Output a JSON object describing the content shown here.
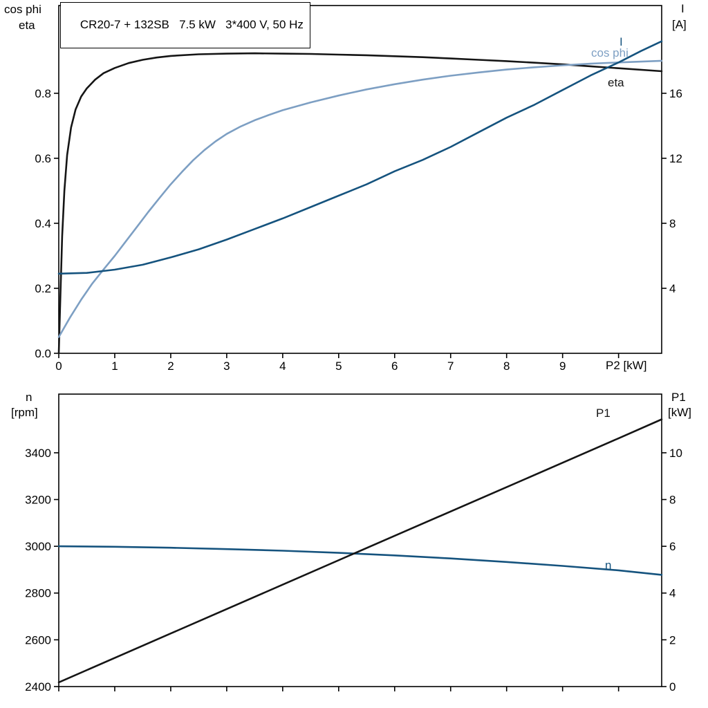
{
  "header": {
    "title": "CR20-7 + 132SB   7.5 kW   3*400 V, 50 Hz"
  },
  "colors": {
    "black_curve": "#151515",
    "dark_blue": "#15537e",
    "light_blue": "#7d9fc3",
    "axis": "#000000",
    "background": "#ffffff"
  },
  "axis_titles": {
    "top_left_line1": "cos phi",
    "top_left_line2": "eta",
    "top_right_line1": "I",
    "top_right_line2": "[A]",
    "x_label": "P2 [kW]",
    "bottom_left_line1": "n",
    "bottom_left_line2": "[rpm]",
    "bottom_right_line1": "P1",
    "bottom_right_line2": "[kW]"
  },
  "curve_labels": {
    "current": "I",
    "cos_phi": "cos phi",
    "eta": "eta",
    "p1": "P1",
    "n": "n"
  },
  "chart_data": [
    {
      "type": "line",
      "title": "CR20-7 + 132SB   7.5 kW   3*400 V, 50 Hz",
      "xlabel": "P2 [kW]",
      "xlim": [
        0,
        10.77
      ],
      "x_ticks": [
        0,
        1,
        2,
        3,
        4,
        5,
        6,
        7,
        8,
        9,
        10
      ],
      "x_tick_labels": [
        "0",
        "1",
        "2",
        "3",
        "4",
        "5",
        "6",
        "7",
        "8",
        "9",
        ""
      ],
      "grid": false,
      "left_axis": {
        "label": "cos phi / eta",
        "lim": [
          0,
          1.07
        ],
        "ticks": [
          0,
          0.2,
          0.4,
          0.6,
          0.8
        ],
        "tick_labels": [
          "0.0",
          "0.2",
          "0.4",
          "0.6",
          "0.8"
        ]
      },
      "right_axis": {
        "label": "I [A]",
        "lim": [
          0,
          21.4
        ],
        "ticks": [
          4,
          8,
          12,
          16
        ],
        "tick_labels": [
          "4",
          "8",
          "12",
          "16"
        ]
      },
      "series": [
        {
          "id": "eta",
          "name": "eta",
          "axis": "left",
          "color_key": "black_curve",
          "points": [
            [
              0,
              0
            ],
            [
              0.03,
              0.18
            ],
            [
              0.06,
              0.36
            ],
            [
              0.1,
              0.5
            ],
            [
              0.15,
              0.61
            ],
            [
              0.22,
              0.695
            ],
            [
              0.3,
              0.75
            ],
            [
              0.4,
              0.79
            ],
            [
              0.5,
              0.815
            ],
            [
              0.65,
              0.842
            ],
            [
              0.8,
              0.862
            ],
            [
              1.0,
              0.878
            ],
            [
              1.25,
              0.893
            ],
            [
              1.5,
              0.903
            ],
            [
              1.75,
              0.91
            ],
            [
              2.0,
              0.915
            ],
            [
              2.5,
              0.92
            ],
            [
              3.0,
              0.922
            ],
            [
              3.5,
              0.923
            ],
            [
              4.0,
              0.922
            ],
            [
              4.5,
              0.921
            ],
            [
              5.0,
              0.919
            ],
            [
              5.5,
              0.917
            ],
            [
              6.0,
              0.914
            ],
            [
              6.5,
              0.911
            ],
            [
              7.0,
              0.907
            ],
            [
              7.5,
              0.903
            ],
            [
              8.0,
              0.899
            ],
            [
              8.5,
              0.894
            ],
            [
              9.0,
              0.889
            ],
            [
              9.5,
              0.883
            ],
            [
              10.0,
              0.877
            ],
            [
              10.77,
              0.868
            ]
          ]
        },
        {
          "id": "cos-phi",
          "name": "cos phi",
          "axis": "left",
          "color_key": "light_blue",
          "points": [
            [
              0,
              0.05
            ],
            [
              0.2,
              0.11
            ],
            [
              0.4,
              0.165
            ],
            [
              0.6,
              0.215
            ],
            [
              0.8,
              0.258
            ],
            [
              1.0,
              0.3
            ],
            [
              1.2,
              0.345
            ],
            [
              1.4,
              0.39
            ],
            [
              1.6,
              0.435
            ],
            [
              1.8,
              0.478
            ],
            [
              2.0,
              0.52
            ],
            [
              2.2,
              0.558
            ],
            [
              2.4,
              0.594
            ],
            [
              2.6,
              0.625
            ],
            [
              2.8,
              0.652
            ],
            [
              3.0,
              0.675
            ],
            [
              3.25,
              0.698
            ],
            [
              3.5,
              0.717
            ],
            [
              3.75,
              0.733
            ],
            [
              4.0,
              0.748
            ],
            [
              4.5,
              0.772
            ],
            [
              5.0,
              0.793
            ],
            [
              5.5,
              0.812
            ],
            [
              6.0,
              0.828
            ],
            [
              6.5,
              0.842
            ],
            [
              7.0,
              0.854
            ],
            [
              7.5,
              0.864
            ],
            [
              8.0,
              0.873
            ],
            [
              8.5,
              0.88
            ],
            [
              9.0,
              0.886
            ],
            [
              9.5,
              0.891
            ],
            [
              10.0,
              0.895
            ],
            [
              10.77,
              0.9
            ]
          ]
        },
        {
          "id": "current",
          "name": "I",
          "axis": "right",
          "color_key": "dark_blue",
          "points": [
            [
              0,
              4.9
            ],
            [
              0.5,
              4.95
            ],
            [
              1.0,
              5.15
            ],
            [
              1.5,
              5.45
            ],
            [
              2.0,
              5.9
            ],
            [
              2.5,
              6.4
            ],
            [
              3.0,
              7.0
            ],
            [
              3.5,
              7.65
            ],
            [
              4.0,
              8.3
            ],
            [
              4.5,
              9.0
            ],
            [
              5.0,
              9.7
            ],
            [
              5.5,
              10.4
            ],
            [
              6.0,
              11.2
            ],
            [
              6.5,
              11.9
            ],
            [
              7.0,
              12.7
            ],
            [
              7.5,
              13.6
            ],
            [
              8.0,
              14.5
            ],
            [
              8.5,
              15.3
            ],
            [
              9.0,
              16.2
            ],
            [
              9.5,
              17.1
            ],
            [
              10.0,
              17.9
            ],
            [
              10.4,
              18.6
            ],
            [
              10.77,
              19.2
            ]
          ]
        }
      ]
    },
    {
      "type": "line",
      "title": "",
      "xlabel": "",
      "xlim": [
        0,
        10.77
      ],
      "x_ticks": [
        0,
        1,
        2,
        3,
        4,
        5,
        6,
        7,
        8,
        9,
        10
      ],
      "x_tick_labels": null,
      "grid": false,
      "left_axis": {
        "label": "n [rpm]",
        "lim": [
          2400,
          3651
        ],
        "ticks": [
          2400,
          2600,
          2800,
          3000,
          3200,
          3400
        ],
        "tick_labels": [
          "2400",
          "2600",
          "2800",
          "3000",
          "3200",
          "3400"
        ]
      },
      "right_axis": {
        "label": "P1 [kW]",
        "lim": [
          0,
          12.51
        ],
        "ticks": [
          0,
          2,
          4,
          6,
          8,
          10
        ],
        "tick_labels": [
          "0",
          "2",
          "4",
          "6",
          "8",
          "10"
        ]
      },
      "series": [
        {
          "id": "n",
          "name": "n",
          "axis": "left",
          "color_key": "dark_blue",
          "points": [
            [
              0,
              3000
            ],
            [
              1,
              2998
            ],
            [
              2,
              2994
            ],
            [
              3,
              2988
            ],
            [
              4,
              2981
            ],
            [
              5,
              2972
            ],
            [
              6,
              2961
            ],
            [
              7,
              2948
            ],
            [
              8,
              2933
            ],
            [
              9,
              2916
            ],
            [
              10,
              2897
            ],
            [
              10.77,
              2878
            ]
          ]
        },
        {
          "id": "p1",
          "name": "P1",
          "axis": "right",
          "color_key": "black_curve",
          "points": [
            [
              0,
              0.18
            ],
            [
              2,
              2.27
            ],
            [
              4,
              4.36
            ],
            [
              6,
              6.45
            ],
            [
              8,
              8.53
            ],
            [
              10,
              10.62
            ],
            [
              10.77,
              11.43
            ]
          ]
        }
      ]
    }
  ]
}
